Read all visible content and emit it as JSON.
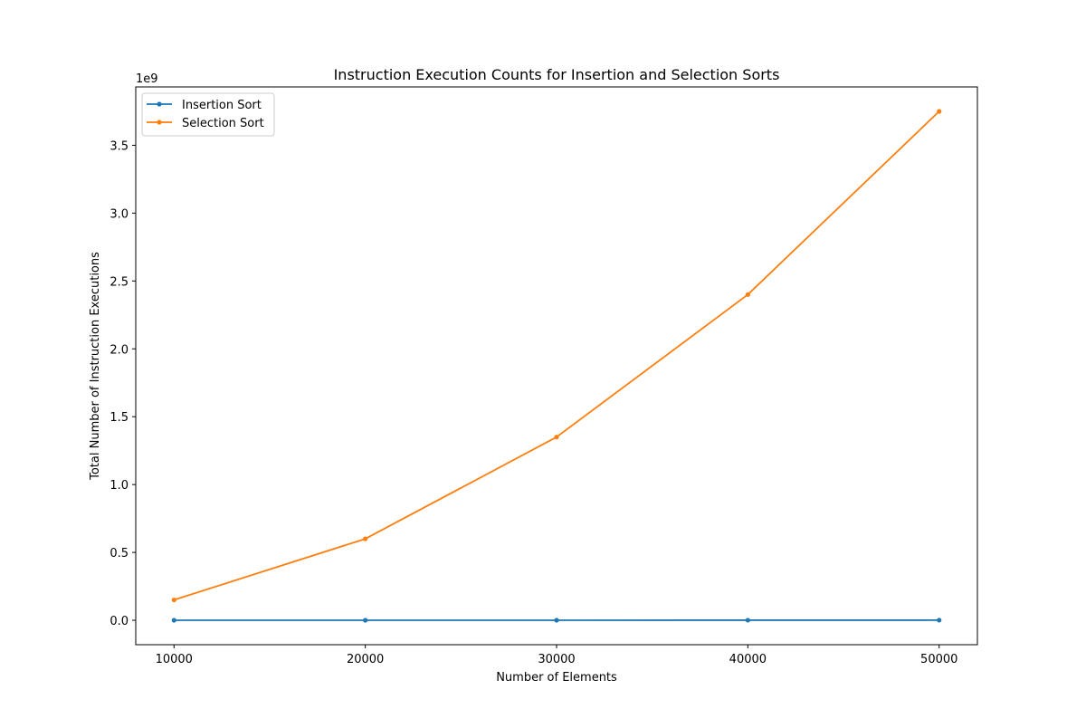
{
  "chart_data": {
    "type": "line",
    "title": "Instruction Execution Counts for Insertion and Selection Sorts",
    "xlabel": "Number of Elements",
    "ylabel": "Total Number of Instruction Executions",
    "y_offset_label": "1e9",
    "y_scale": 1000000000,
    "x": [
      10000,
      20000,
      30000,
      40000,
      50000
    ],
    "x_ticks": [
      10000,
      20000,
      30000,
      40000,
      50000
    ],
    "x_tick_labels": [
      "10000",
      "20000",
      "30000",
      "40000",
      "50000"
    ],
    "y_ticks": [
      0.0,
      0.5,
      1.0,
      1.5,
      2.0,
      2.5,
      3.0,
      3.5
    ],
    "y_tick_labels": [
      "0.0",
      "0.5",
      "1.0",
      "1.5",
      "2.0",
      "2.5",
      "3.0",
      "3.5"
    ],
    "xlim": [
      8000,
      52000
    ],
    "ylim": [
      -180000000,
      3930000000
    ],
    "grid": false,
    "legend_placement": "top-left",
    "series": [
      {
        "name": "Insertion Sort",
        "color": "#1f77b4",
        "marker": "circle",
        "values": [
          30000,
          120000,
          270000,
          480000,
          750000
        ]
      },
      {
        "name": "Selection Sort",
        "color": "#ff7f0e",
        "marker": "circle",
        "values": [
          150000000,
          600000000,
          1350000000,
          2400000000,
          3750000000
        ]
      }
    ]
  }
}
